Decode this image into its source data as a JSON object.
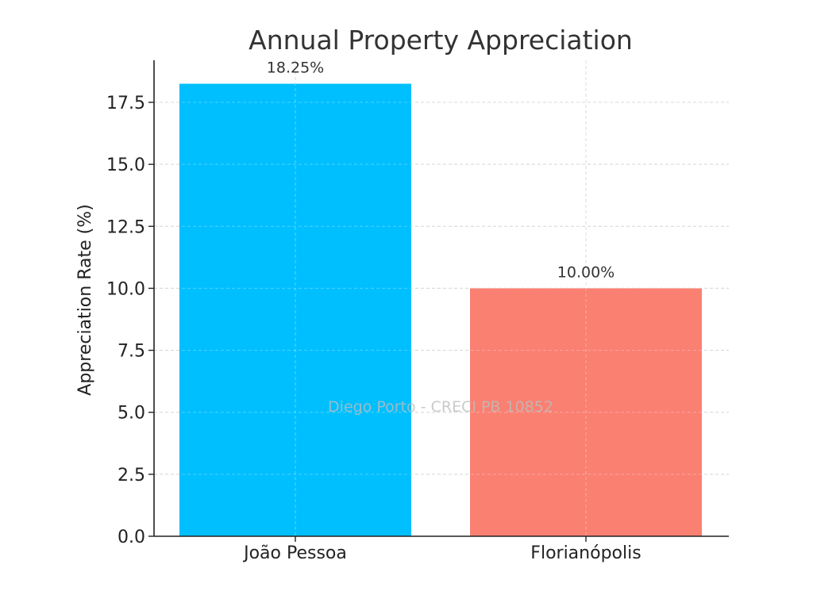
{
  "chart_data": {
    "type": "bar",
    "title": "Annual Property Appreciation",
    "xlabel": "",
    "ylabel": "Appreciation Rate (%)",
    "categories": [
      "João Pessoa",
      "Florianópolis"
    ],
    "values": [
      18.25,
      10.0
    ],
    "data_labels": [
      "18.25%",
      "10.00%"
    ],
    "colors": [
      "#00bfff",
      "#fa8072"
    ],
    "ylim": [
      0,
      18.25
    ],
    "yticks": [
      0,
      2.5,
      5,
      7.5,
      10,
      12.5,
      15,
      17.5
    ],
    "ytick_labels": [
      "0.0",
      "2.5",
      "5.0",
      "7.5",
      "10.0",
      "12.5",
      "15.0",
      "17.5"
    ],
    "grid": true,
    "watermark": "Diego Porto - CRECI PB 10852"
  }
}
